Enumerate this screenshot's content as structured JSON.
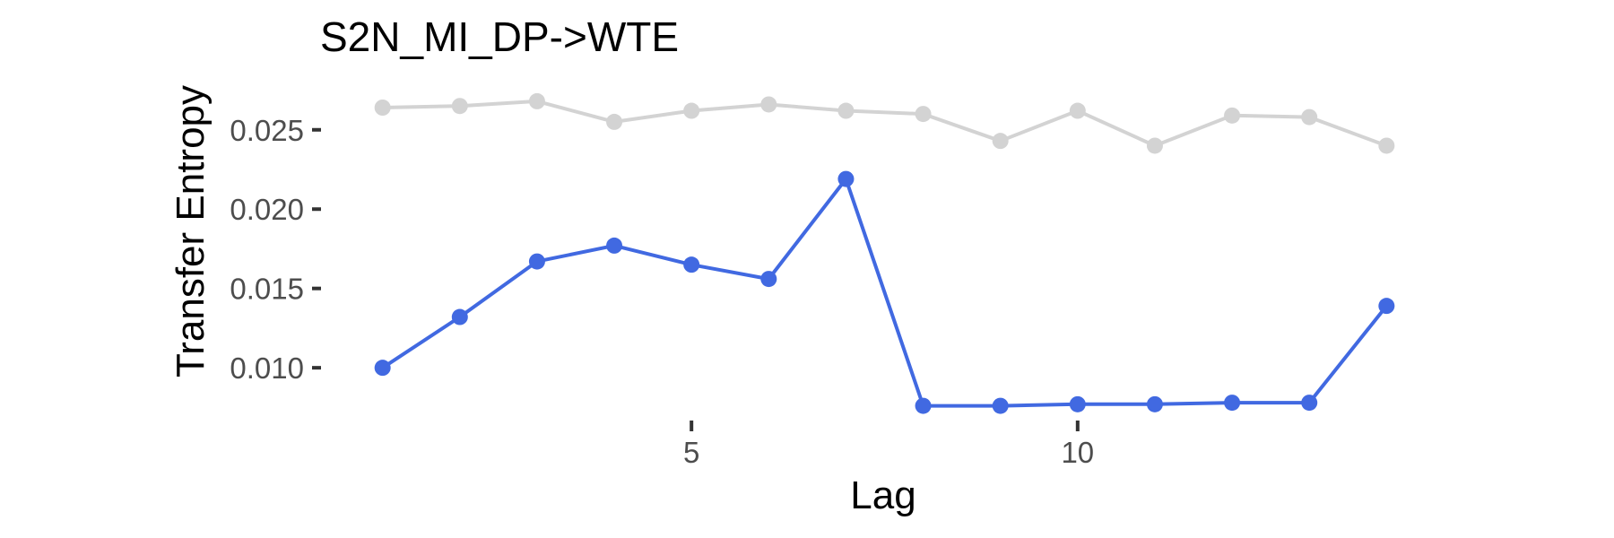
{
  "chart_data": {
    "type": "line",
    "title": "S2N_MI_DP->WTE",
    "xlabel": "Lag",
    "ylabel": "Transfer Entropy",
    "x": [
      1,
      2,
      3,
      4,
      5,
      6,
      7,
      8,
      9,
      10,
      11,
      12,
      13,
      14
    ],
    "xticks": [
      5,
      10
    ],
    "xtick_labels": [
      "5",
      "10"
    ],
    "yticks": [
      0.01,
      0.015,
      0.02,
      0.025
    ],
    "ytick_labels": [
      "0.010",
      "0.015",
      "0.020",
      "0.025"
    ],
    "xlim": [
      0.4,
      14.6
    ],
    "ylim": [
      0.0069,
      0.0277
    ],
    "grid": false,
    "series": [
      {
        "color": "#d3d3d3",
        "values": [
          0.0264,
          0.0265,
          0.0268,
          0.0255,
          0.0262,
          0.0266,
          0.0262,
          0.026,
          0.0243,
          0.0262,
          0.024,
          0.0259,
          0.0258,
          0.024
        ]
      },
      {
        "color": "#4169e1",
        "values": [
          0.01,
          0.0132,
          0.0167,
          0.0177,
          0.0165,
          0.0156,
          0.0219,
          0.0076,
          0.0076,
          0.0077,
          0.0077,
          0.0078,
          0.0078,
          0.0139
        ]
      }
    ]
  }
}
